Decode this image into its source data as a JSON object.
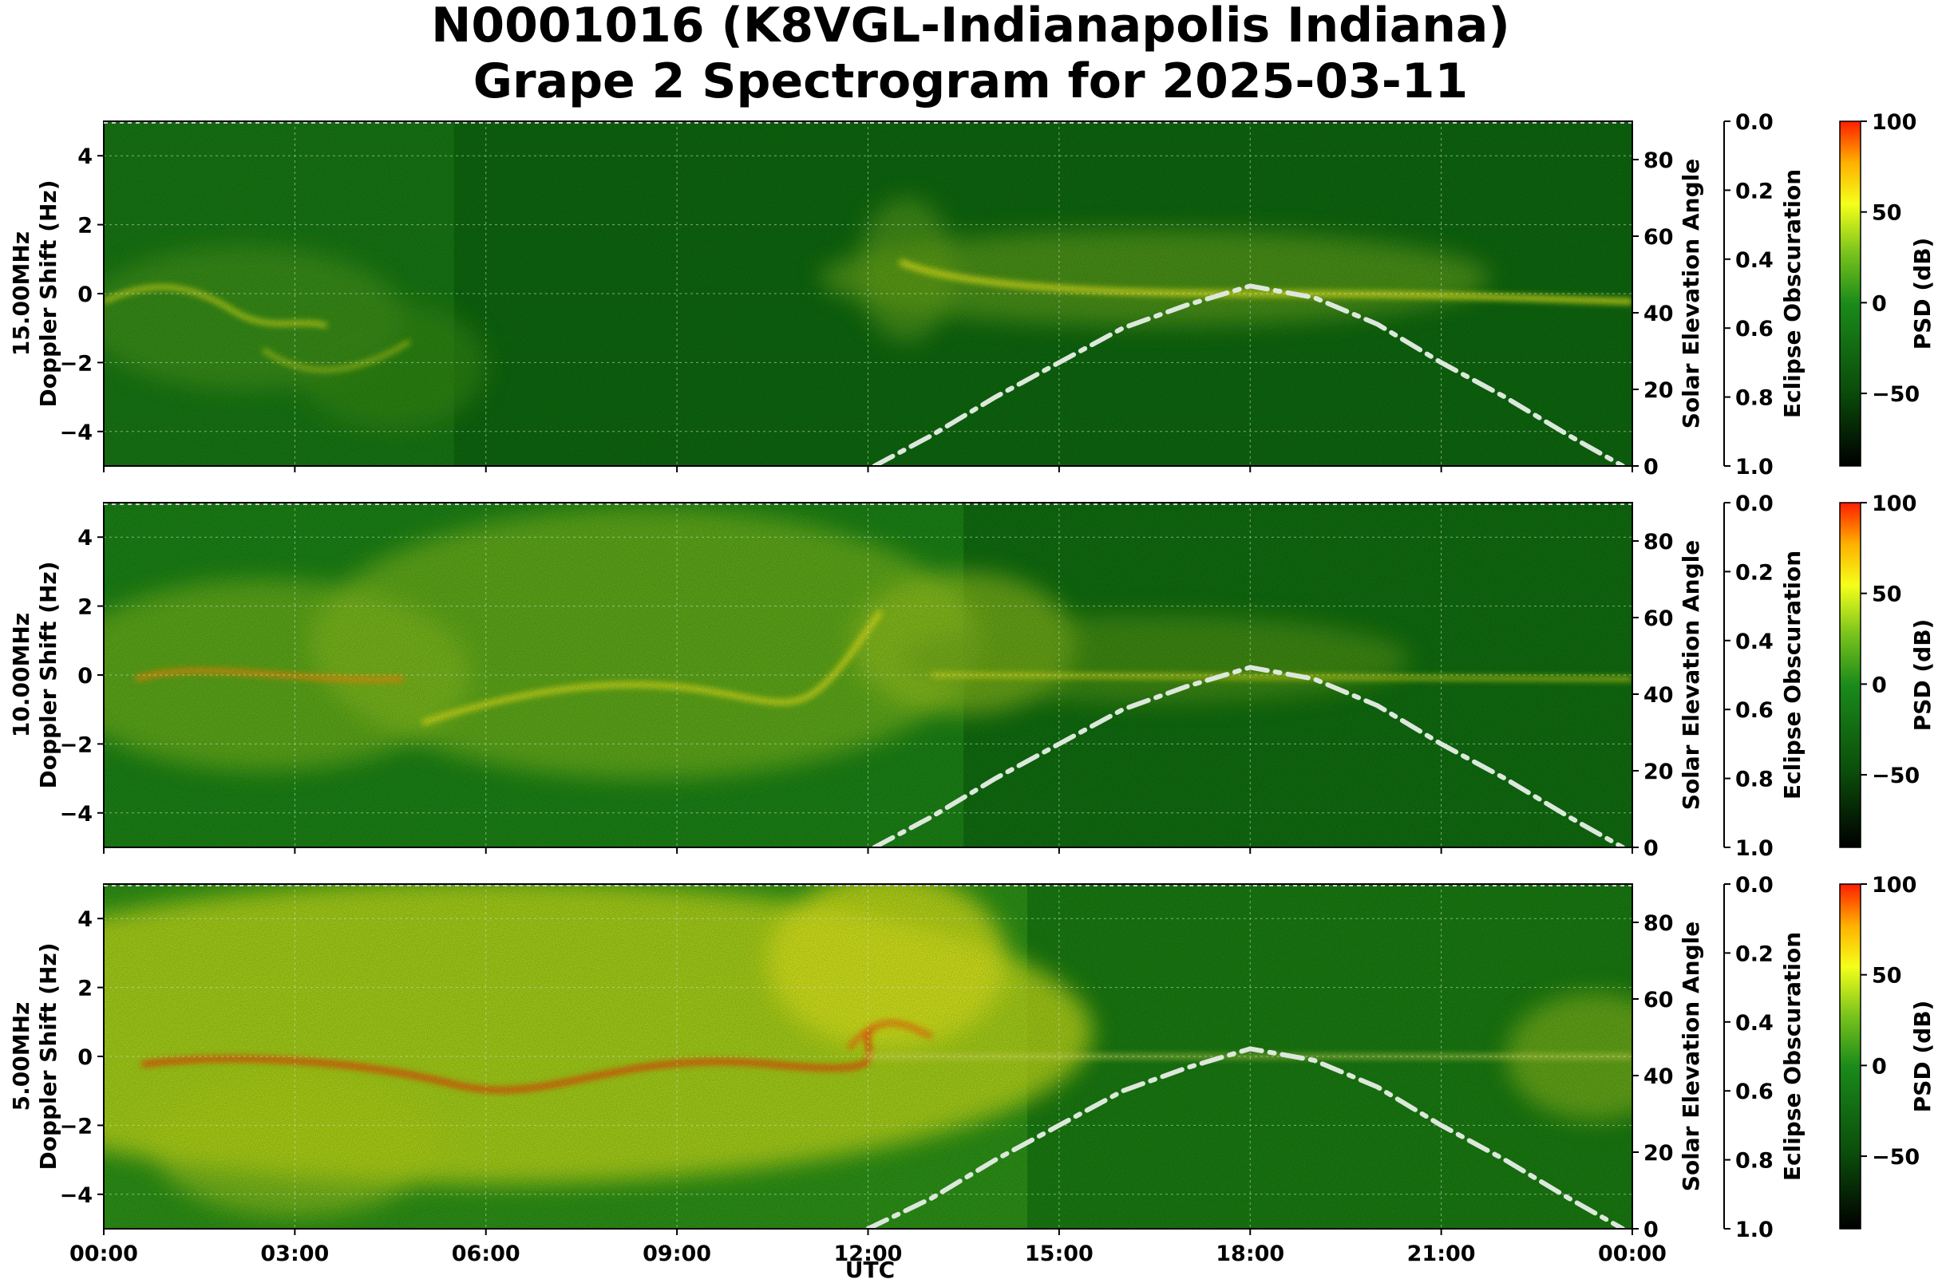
{
  "title": {
    "line1": "N0001016 (K8VGL-Indianapolis Indiana)",
    "line2": "Grape 2 Spectrogram for 2025-03-11"
  },
  "xlabel": "UTC",
  "colors": {
    "dark_green": "#0b5e0b",
    "green": "#1f8f1f",
    "yellow": "#f4ff1a",
    "red": "#ff1e00",
    "elevation_curve": "#dde8dc"
  },
  "chart_data": [
    {
      "type": "heatmap",
      "frequency_label": "15.00MHz",
      "ylabel": "15.00MHz\nDoppler Shift (Hz)",
      "ylim": [
        -5,
        5
      ],
      "yticks": [
        "4",
        "2",
        "0",
        "−2",
        "−4"
      ],
      "xlim": [
        "00:00",
        "24:00"
      ],
      "xticks": [
        "00:00",
        "03:00",
        "06:00",
        "09:00",
        "12:00",
        "15:00",
        "18:00",
        "21:00",
        "00:00"
      ],
      "right_axis_1": {
        "label": "Solar Elevation Angle",
        "ticks": [
          "80",
          "60",
          "40",
          "20",
          "0"
        ],
        "range": [
          0,
          90
        ]
      },
      "right_axis_2": {
        "label": "Eclipse Obscuration",
        "ticks": [
          "0.0",
          "0.2",
          "0.4",
          "0.6",
          "0.8",
          "1.0"
        ],
        "range": [
          0,
          1
        ]
      },
      "colorbar": {
        "label": "PSD (dB)",
        "ticks": [
          "100",
          "50",
          "0",
          "−50"
        ],
        "range": [
          -90,
          100
        ]
      },
      "solar_elevation": {
        "x_hours": [
          12.1,
          13,
          14,
          15,
          16,
          17,
          18,
          19,
          20,
          21,
          22,
          23,
          23.85
        ],
        "y_degrees": [
          0,
          8,
          18,
          27,
          36,
          42,
          47,
          44,
          37,
          27,
          18,
          8,
          0
        ]
      },
      "grid": true
    },
    {
      "type": "heatmap",
      "frequency_label": "10.00MHz",
      "ylabel": "10.00MHz\nDoppler Shift (Hz)",
      "ylim": [
        -5,
        5
      ],
      "yticks": [
        "4",
        "2",
        "0",
        "−2",
        "−4"
      ],
      "xlim": [
        "00:00",
        "24:00"
      ],
      "xticks": [
        "00:00",
        "03:00",
        "06:00",
        "09:00",
        "12:00",
        "15:00",
        "18:00",
        "21:00",
        "00:00"
      ],
      "right_axis_1": {
        "label": "Solar Elevation Angle",
        "ticks": [
          "80",
          "60",
          "40",
          "20",
          "0"
        ],
        "range": [
          0,
          90
        ]
      },
      "right_axis_2": {
        "label": "Eclipse Obscuration",
        "ticks": [
          "0.0",
          "0.2",
          "0.4",
          "0.6",
          "0.8",
          "1.0"
        ],
        "range": [
          0,
          1
        ]
      },
      "colorbar": {
        "label": "PSD (dB)",
        "ticks": [
          "100",
          "50",
          "0",
          "−50"
        ],
        "range": [
          -90,
          100
        ]
      },
      "solar_elevation": {
        "x_hours": [
          12.1,
          13,
          14,
          15,
          16,
          17,
          18,
          19,
          20,
          21,
          22,
          23,
          23.85
        ],
        "y_degrees": [
          0,
          8,
          18,
          27,
          36,
          42,
          47,
          44,
          37,
          27,
          18,
          8,
          0
        ]
      },
      "grid": true
    },
    {
      "type": "heatmap",
      "frequency_label": "5.00MHz",
      "ylabel": "5.00MHz\nDoppler Shift (Hz)",
      "ylim": [
        -5,
        5
      ],
      "yticks": [
        "4",
        "2",
        "0",
        "−2",
        "−4"
      ],
      "xlim": [
        "00:00",
        "24:00"
      ],
      "xticks": [
        "00:00",
        "03:00",
        "06:00",
        "09:00",
        "12:00",
        "15:00",
        "18:00",
        "21:00",
        "00:00"
      ],
      "right_axis_1": {
        "label": "Solar Elevation Angle",
        "ticks": [
          "80",
          "60",
          "40",
          "20",
          "0"
        ],
        "range": [
          0,
          90
        ]
      },
      "right_axis_2": {
        "label": "Eclipse Obscuration",
        "ticks": [
          "0.0",
          "0.2",
          "0.4",
          "0.6",
          "0.8",
          "1.0"
        ],
        "range": [
          0,
          1
        ]
      },
      "colorbar": {
        "label": "PSD (dB)",
        "ticks": [
          "100",
          "50",
          "0",
          "−50"
        ],
        "range": [
          -90,
          100
        ]
      },
      "solar_elevation": {
        "x_hours": [
          12.0,
          13,
          14,
          15,
          16,
          17,
          18,
          19,
          20,
          21,
          22,
          23,
          23.85
        ],
        "y_degrees": [
          0,
          8,
          18,
          27,
          36,
          42,
          47,
          44,
          37,
          27,
          18,
          8,
          0
        ]
      },
      "grid": true
    }
  ]
}
